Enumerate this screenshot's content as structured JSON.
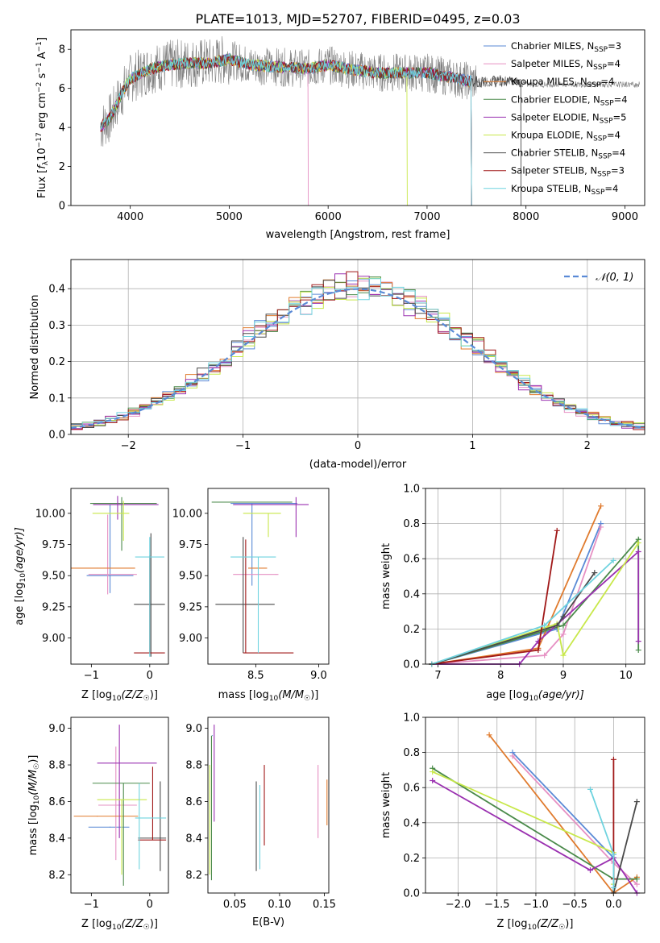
{
  "figure": {
    "title": "PLATE=1013, MJD=52707, FIBERID=0495, z=0.03"
  },
  "series_colors": [
    "#5a8ad6",
    "#e690c3",
    "#e07b2e",
    "#4a8a4a",
    "#9a30b0",
    "#c8e84a",
    "#4a4a4a",
    "#a01818",
    "#6fd3df"
  ],
  "chart_data": [
    {
      "id": "spectrum",
      "type": "line",
      "xlabel": "wavelength [Angstrom, rest frame]",
      "ylabel_main": "Flux [",
      "ylabel_unit": "f",
      "ylabel_sub": "λ",
      "ylabel_rest": "10",
      "ylabel_exp": "−17",
      "ylabel_tail": " erg cm",
      "xlim": [
        3400,
        9200
      ],
      "ylim": [
        0,
        9
      ],
      "xticks": [
        4000,
        5000,
        6000,
        7000,
        8000,
        9000
      ],
      "yticks": [
        0,
        2,
        4,
        6,
        8
      ],
      "grid": false,
      "legend_position": "upper right",
      "legend": [
        {
          "name": "Chabrier MILES, N",
          "sub": "SSP",
          "tail": "=3"
        },
        {
          "name": "Salpeter MILES, N",
          "sub": "SSP",
          "tail": "=4"
        },
        {
          "name": "Kroupa MILES, N",
          "sub": "SSP",
          "tail": "=4"
        },
        {
          "name": "Chabrier ELODIE, N",
          "sub": "SSP",
          "tail": "=4"
        },
        {
          "name": "Salpeter ELODIE, N",
          "sub": "SSP",
          "tail": "=5"
        },
        {
          "name": "Kroupa ELODIE, N",
          "sub": "SSP",
          "tail": "=4"
        },
        {
          "name": "Chabrier STELIB, N",
          "sub": "SSP",
          "tail": "=4"
        },
        {
          "name": "Salpeter STELIB, N",
          "sub": "SSP",
          "tail": "=3"
        },
        {
          "name": "Kroupa STELIB, N",
          "sub": "SSP",
          "tail": "=4"
        }
      ],
      "observed_color": "#808080",
      "continuum_knots": {
        "x": [
          3700,
          3800,
          3900,
          4000,
          4200,
          4400,
          4600,
          4800,
          5000,
          5200,
          5500,
          5800,
          6000,
          6200,
          6500,
          6800,
          7000,
          7200,
          7400,
          7600,
          7800,
          8000
        ],
        "y": [
          4.0,
          4.5,
          5.6,
          6.5,
          7.0,
          7.2,
          7.3,
          7.3,
          7.5,
          7.2,
          7.1,
          7.0,
          7.2,
          7.0,
          6.8,
          6.8,
          6.8,
          6.6,
          6.4,
          6.3,
          6.4,
          6.2
        ]
      },
      "model_end": [
        7450,
        5800,
        7450,
        7450,
        7450,
        6800,
        7950,
        7450,
        7450
      ]
    },
    {
      "id": "residuals",
      "type": "histogram",
      "xlabel": "(data-model)/error",
      "ylabel": "Normed distribution",
      "xlim": [
        -2.5,
        2.5
      ],
      "ylim": [
        0,
        0.48
      ],
      "xticks": [
        -2,
        -1,
        0,
        1,
        2
      ],
      "xtick_labels": [
        "−2",
        "−1",
        "0",
        "1",
        "2"
      ],
      "yticks": [
        0.0,
        0.1,
        0.2,
        0.3,
        0.4
      ],
      "ytick_labels": [
        "0.0",
        "0.1",
        "0.2",
        "0.3",
        "0.4"
      ],
      "grid": true,
      "bin_width": 0.1,
      "normal_curve": {
        "name": "𝒩(0, 1)",
        "color": "#5a8ad6",
        "mean": 0,
        "sigma": 1
      },
      "legend_position": "upper right"
    },
    {
      "id": "age_vs_Z",
      "type": "errorbar",
      "xlabel": "Z [log",
      "xlabel_sub": "10",
      "xlabel_rest": "(Z/Z",
      "xlabel_sun": "☉",
      "xlabel_end": ")]",
      "ylabel": "age  [log",
      "ylabel_sub": "10",
      "ylabel_rest": "(age/yr)]",
      "xlim": [
        -1.35,
        0.32
      ],
      "ylim": [
        8.79,
        10.2
      ],
      "xticks": [
        -1,
        0
      ],
      "xtick_labels": [
        "−1",
        "0"
      ],
      "yticks": [
        9.0,
        9.25,
        9.5,
        9.75,
        10.0
      ],
      "ytick_labels": [
        "9.00",
        "9.25",
        "9.50",
        "9.75",
        "10.00"
      ],
      "points": [
        {
          "x": -0.68,
          "xlo": -1.08,
          "xhi": -0.28,
          "y": 9.5,
          "ylo": 9.36,
          "yhi": 10.07
        },
        {
          "x": -0.72,
          "xlo": -1.05,
          "xhi": -0.22,
          "y": 9.51,
          "ylo": 9.35,
          "yhi": 9.99
        },
        {
          "x": -0.9,
          "xlo": -1.35,
          "xhi": -0.25,
          "y": 9.56,
          "ylo": 9.56,
          "yhi": 9.56
        },
        {
          "x": -0.48,
          "xlo": -1.02,
          "xhi": 0.12,
          "y": 10.08,
          "ylo": 9.7,
          "yhi": 10.13
        },
        {
          "x": -0.55,
          "xlo": -0.97,
          "xhi": 0.15,
          "y": 10.07,
          "ylo": 9.95,
          "yhi": 10.14
        },
        {
          "x": -0.45,
          "xlo": -0.98,
          "xhi": -0.35,
          "y": 10.0,
          "ylo": 9.78,
          "yhi": 10.1
        },
        {
          "x": 0.02,
          "xlo": -0.27,
          "xhi": 0.26,
          "y": 9.27,
          "ylo": 8.85,
          "yhi": 9.84
        },
        {
          "x": 0.0,
          "xlo": -0.27,
          "xhi": 0.26,
          "y": 8.88,
          "ylo": 8.88,
          "yhi": 9.66
        },
        {
          "x": 0.0,
          "xlo": -0.25,
          "xhi": 0.25,
          "y": 9.65,
          "ylo": 8.85,
          "yhi": 9.81
        }
      ]
    },
    {
      "id": "age_vs_mass",
      "type": "errorbar",
      "xlabel": "mass [log",
      "xlabel_sub": "10",
      "xlabel_rest": "(M/M",
      "xlabel_sun": "☉",
      "xlabel_end": ")]",
      "xlim": [
        8.12,
        9.08
      ],
      "ylim": [
        8.79,
        10.2
      ],
      "xticks": [
        8.5,
        9.0
      ],
      "xtick_labels": [
        "8.5",
        "9.0"
      ],
      "yticks": [
        9.0,
        9.25,
        9.5,
        9.75,
        10.0
      ],
      "ytick_labels": [
        "9.00",
        "9.25",
        "9.50",
        "9.75",
        "10.00"
      ],
      "points": [
        {
          "x": 8.47,
          "xlo": 8.3,
          "xhi": 8.83,
          "y": 10.08,
          "ylo": 9.42,
          "yhi": 10.08
        },
        {
          "x": 8.66,
          "xlo": 8.32,
          "xhi": 8.68,
          "y": 9.51,
          "ylo": 9.51,
          "yhi": 9.51
        },
        {
          "x": 8.52,
          "xlo": 8.44,
          "xhi": 8.59,
          "y": 9.56,
          "ylo": 9.56,
          "yhi": 9.56
        },
        {
          "x": 8.45,
          "xlo": 8.15,
          "xhi": 8.79,
          "y": 10.09,
          "ylo": 10.09,
          "yhi": 10.09
        },
        {
          "x": 8.82,
          "xlo": 8.32,
          "xhi": 8.92,
          "y": 10.07,
          "ylo": 9.81,
          "yhi": 10.13
        },
        {
          "x": 8.6,
          "xlo": 8.4,
          "xhi": 8.7,
          "y": 10.0,
          "ylo": 9.81,
          "yhi": 10.0
        },
        {
          "x": 8.4,
          "xlo": 8.18,
          "xhi": 8.65,
          "y": 9.27,
          "ylo": 8.88,
          "yhi": 9.81
        },
        {
          "x": 8.42,
          "xlo": 8.4,
          "xhi": 8.8,
          "y": 8.88,
          "ylo": 8.88,
          "yhi": 9.79
        },
        {
          "x": 8.52,
          "xlo": 8.3,
          "xhi": 8.66,
          "y": 9.65,
          "ylo": 8.88,
          "yhi": 9.65
        }
      ]
    },
    {
      "id": "massweight_vs_age",
      "type": "line",
      "xlabel": "age  [log",
      "xlabel_sub": "10",
      "xlabel_rest": "(age/yr)]",
      "ylabel": "mass weight",
      "xlim": [
        6.8,
        10.3
      ],
      "ylim": [
        0,
        1
      ],
      "xticks": [
        7,
        8,
        9,
        10
      ],
      "xtick_labels": [
        "7",
        "8",
        "9",
        "10"
      ],
      "yticks": [
        0.0,
        0.2,
        0.4,
        0.6,
        0.8,
        1.0
      ],
      "ytick_labels": [
        "0.0",
        "0.2",
        "0.4",
        "0.6",
        "0.8",
        "1.0"
      ],
      "grid": true,
      "series": [
        {
          "x": [
            6.9,
            8.9,
            9.6
          ],
          "y": [
            0.0,
            0.2,
            0.8
          ]
        },
        {
          "x": [
            6.9,
            8.7,
            9.0,
            9.6
          ],
          "y": [
            0.0,
            0.05,
            0.17,
            0.78
          ]
        },
        {
          "x": [
            6.9,
            8.6,
            9.6
          ],
          "y": [
            0.0,
            0.09,
            0.9
          ]
        },
        {
          "x": [
            6.9,
            9.0,
            10.2,
            10.2
          ],
          "y": [
            0.0,
            0.22,
            0.71,
            0.08
          ]
        },
        {
          "x": [
            6.9,
            8.3,
            8.6,
            10.2,
            10.2
          ],
          "y": [
            0.0,
            0.0,
            0.13,
            0.64,
            0.13
          ]
        },
        {
          "x": [
            6.9,
            8.9,
            9.0,
            10.2
          ],
          "y": [
            0.0,
            0.23,
            0.05,
            0.69
          ]
        },
        {
          "x": [
            6.9,
            8.9,
            9.0,
            9.5
          ],
          "y": [
            0.0,
            0.22,
            0.27,
            0.52
          ]
        },
        {
          "x": [
            6.9,
            8.6,
            8.9
          ],
          "y": [
            0.0,
            0.08,
            0.76
          ]
        },
        {
          "x": [
            6.9,
            8.7,
            9.8
          ],
          "y": [
            0.0,
            0.22,
            0.59
          ]
        }
      ]
    },
    {
      "id": "mass_vs_Z",
      "type": "errorbar",
      "xlabel": "Z [log",
      "xlabel_sub": "10",
      "xlabel_rest": "(Z/Z",
      "xlabel_sun": "☉",
      "xlabel_end": ")]",
      "ylabel": "mass [log",
      "ylabel_sub": "10",
      "ylabel_rest": "(M/M",
      "ylabel_sun": "☉",
      "ylabel_end": ")]",
      "xlim": [
        -1.35,
        0.32
      ],
      "ylim": [
        8.1,
        9.06
      ],
      "xticks": [
        -1,
        0
      ],
      "xtick_labels": [
        "−1",
        "0"
      ],
      "yticks": [
        8.2,
        8.4,
        8.6,
        8.8,
        9.0
      ],
      "ytick_labels": [
        "8.2",
        "8.4",
        "8.6",
        "8.8",
        "9.0"
      ],
      "points": [
        {
          "x": -0.68,
          "xlo": -1.05,
          "xhi": -0.35,
          "y": 8.46,
          "ylo": 8.46,
          "yhi": 8.46
        },
        {
          "x": -0.58,
          "xlo": -0.88,
          "xhi": -0.22,
          "y": 8.58,
          "ylo": 8.28,
          "yhi": 8.9
        },
        {
          "x": -0.9,
          "xlo": -1.3,
          "xhi": -0.2,
          "y": 8.52,
          "ylo": 8.52,
          "yhi": 8.52
        },
        {
          "x": -0.45,
          "xlo": -0.98,
          "xhi": 0.0,
          "y": 8.7,
          "ylo": 8.14,
          "yhi": 8.7
        },
        {
          "x": -0.52,
          "xlo": -0.9,
          "xhi": 0.12,
          "y": 8.81,
          "ylo": 8.4,
          "yhi": 9.02
        },
        {
          "x": -0.48,
          "xlo": -0.9,
          "xhi": -0.05,
          "y": 8.61,
          "ylo": 8.2,
          "yhi": 8.61
        },
        {
          "x": 0.18,
          "xlo": -0.2,
          "xhi": 0.28,
          "y": 8.4,
          "ylo": 8.22,
          "yhi": 8.71
        },
        {
          "x": 0.05,
          "xlo": -0.2,
          "xhi": 0.28,
          "y": 8.39,
          "ylo": 8.39,
          "yhi": 8.79
        },
        {
          "x": -0.18,
          "xlo": -0.25,
          "xhi": 0.28,
          "y": 8.51,
          "ylo": 8.23,
          "yhi": 8.7
        }
      ]
    },
    {
      "id": "mass_vs_EBV",
      "type": "errorbar",
      "xlabel": "E(B-V)",
      "xlim": [
        0.02,
        0.155
      ],
      "ylim": [
        8.1,
        9.06
      ],
      "xticks": [
        0.05,
        0.1,
        0.15
      ],
      "xtick_labels": [
        "0.05",
        "0.10",
        "0.15"
      ],
      "yticks": [
        8.2,
        8.4,
        8.6,
        8.8,
        9.0
      ],
      "ytick_labels": [
        "8.2",
        "8.4",
        "8.6",
        "8.8",
        "9.0"
      ],
      "points": [
        {
          "x": 0.025,
          "y": 8.96,
          "ylo": 8.96,
          "yhi": 8.96
        },
        {
          "x": 0.143,
          "y": 8.4,
          "ylo": 8.4,
          "yhi": 8.8
        },
        {
          "x": 0.153,
          "y": 8.47,
          "ylo": 8.47,
          "yhi": 8.72
        },
        {
          "x": 0.024,
          "y": 8.4,
          "ylo": 8.17,
          "yhi": 8.96
        },
        {
          "x": 0.027,
          "y": 8.49,
          "ylo": 8.49,
          "yhi": 9.02
        },
        {
          "x": 0.022,
          "y": 8.2,
          "ylo": 8.2,
          "yhi": 8.8
        },
        {
          "x": 0.074,
          "y": 8.22,
          "ylo": 8.22,
          "yhi": 8.71
        },
        {
          "x": 0.083,
          "y": 8.36,
          "ylo": 8.36,
          "yhi": 8.8
        },
        {
          "x": 0.078,
          "y": 8.23,
          "ylo": 8.23,
          "yhi": 8.69
        }
      ]
    },
    {
      "id": "massweight_vs_Z",
      "type": "line",
      "xlabel": "Z [log",
      "xlabel_sub": "10",
      "xlabel_rest": "(Z/Z",
      "xlabel_sun": "☉",
      "xlabel_end": ")]",
      "ylabel": "mass weight",
      "xlim": [
        -2.42,
        0.4
      ],
      "ylim": [
        0,
        1
      ],
      "xticks": [
        -2.0,
        -1.5,
        -1.0,
        -0.5,
        0.0
      ],
      "xtick_labels": [
        "−2.0",
        "−1.5",
        "−1.0",
        "−0.5",
        "0.0"
      ],
      "yticks": [
        0.0,
        0.2,
        0.4,
        0.6,
        0.8,
        1.0
      ],
      "ytick_labels": [
        "0.0",
        "0.2",
        "0.4",
        "0.6",
        "0.8",
        "1.0"
      ],
      "grid": true,
      "series": [
        {
          "x": [
            -1.3,
            0.0,
            0.0
          ],
          "y": [
            0.8,
            0.2,
            0.01
          ]
        },
        {
          "x": [
            -1.3,
            0.0,
            0.3
          ],
          "y": [
            0.78,
            0.17,
            0.05
          ]
        },
        {
          "x": [
            -1.6,
            0.0,
            0.3
          ],
          "y": [
            0.9,
            0.0,
            0.09
          ]
        },
        {
          "x": [
            -2.33,
            0.0,
            0.3
          ],
          "y": [
            0.71,
            0.08,
            0.08
          ]
        },
        {
          "x": [
            -2.33,
            -0.3,
            0.0,
            0.3
          ],
          "y": [
            0.64,
            0.13,
            0.2,
            0.0
          ]
        },
        {
          "x": [
            -2.33,
            0.0,
            0.0
          ],
          "y": [
            0.69,
            0.23,
            0.05
          ]
        },
        {
          "x": [
            0.0,
            0.0,
            0.3
          ],
          "y": [
            0.22,
            0.0,
            0.52
          ]
        },
        {
          "x": [
            0.0,
            0.0
          ],
          "y": [
            0.08,
            0.76
          ]
        },
        {
          "x": [
            -0.3,
            0.0,
            0.0
          ],
          "y": [
            0.59,
            0.22,
            0.03
          ]
        }
      ]
    }
  ]
}
